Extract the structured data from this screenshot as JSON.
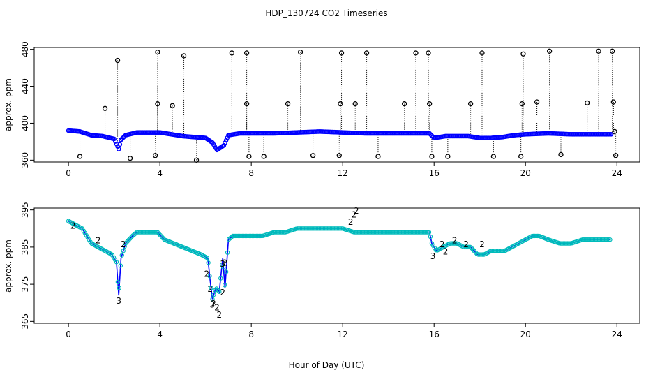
{
  "figure_title": "HDP_130724  CO2 Timeseries",
  "x_label": "Hour of Day (UTC)",
  "colors": {
    "outlier": "#000000",
    "series_main": "#0000ff",
    "series_alt": "#00cc00",
    "series_marker": "#00bbbb"
  },
  "chart_data": [
    {
      "type": "scatter",
      "title": "",
      "xlabel": "",
      "ylabel": "approx. ppm",
      "xlim": [
        -1.5,
        25
      ],
      "ylim": [
        358,
        482
      ],
      "xticks": [
        0,
        4,
        8,
        12,
        16,
        20,
        24
      ],
      "yticks": [
        360,
        400,
        440,
        480
      ],
      "grid": false,
      "series": [
        {
          "kind": "outliers",
          "x": [
            0.5,
            1.6,
            2.15,
            2.7,
            3.8,
            3.9,
            3.9,
            4.55,
            5.05,
            5.6,
            7.15,
            7.8,
            7.8,
            7.9,
            8.55,
            9.6,
            10.15,
            10.7,
            11.85,
            11.9,
            11.95,
            12.55,
            13.05,
            13.55,
            14.7,
            15.2,
            15.75,
            15.8,
            15.9,
            16.6,
            17.6,
            18.1,
            18.6,
            19.8,
            19.85,
            19.9,
            20.5,
            21.05,
            21.55,
            22.7,
            23.2,
            23.8,
            23.85,
            23.9,
            23.95
          ],
          "y": [
            364,
            416,
            468,
            362,
            365,
            421,
            477,
            419,
            473,
            360,
            476,
            476,
            421,
            364,
            364,
            421,
            477,
            365,
            365,
            421,
            476,
            421,
            476,
            364,
            421,
            476,
            476,
            421,
            364,
            364,
            421,
            476,
            364,
            364,
            421,
            475,
            423,
            478,
            366,
            422,
            478,
            478,
            423,
            391,
            365
          ]
        },
        {
          "kind": "baseline",
          "x": [
            0,
            0.5,
            1,
            1.5,
            2,
            2.2,
            2.3,
            2.5,
            3,
            3.5,
            4,
            5,
            5.5,
            6,
            6.3,
            6.5,
            6.8,
            7,
            7.5,
            8,
            9,
            10,
            11,
            12,
            13,
            14,
            15,
            15.8,
            16,
            16.5,
            17,
            17.5,
            18,
            18.5,
            19,
            19.5,
            20,
            21,
            22,
            23,
            23.8
          ],
          "y": [
            392,
            391,
            387,
            386,
            383,
            372,
            382,
            387,
            390,
            390,
            390,
            386,
            385,
            384,
            379,
            371,
            376,
            387,
            389,
            389,
            389,
            390,
            391,
            390,
            389,
            389,
            389,
            389,
            384,
            386,
            386,
            386,
            384,
            384,
            385,
            387,
            388,
            389,
            388,
            388,
            388
          ]
        }
      ]
    },
    {
      "type": "line",
      "title": "",
      "xlabel": "",
      "ylabel": "approx. ppm",
      "xlim": [
        -1.5,
        25
      ],
      "ylim": [
        364.5,
        395.5
      ],
      "xticks": [
        0,
        4,
        8,
        12,
        16,
        20,
        24
      ],
      "yticks": [
        365,
        375,
        385,
        395
      ],
      "grid": false,
      "series": [
        {
          "kind": "main",
          "x": [
            0,
            0.3,
            0.6,
            0.8,
            1,
            1.3,
            1.6,
            1.9,
            2.1,
            2.2,
            2.3,
            2.5,
            2.8,
            3,
            3.3,
            3.6,
            3.9,
            4.2,
            4.6,
            5,
            5.4,
            5.8,
            6.1,
            6.2,
            6.3,
            6.45,
            6.6,
            6.75,
            6.85,
            7.0,
            7.2,
            7.5,
            8,
            8.5,
            9,
            9.5,
            10,
            10.5,
            11,
            11.5,
            12,
            12.5,
            13,
            13.5,
            14,
            14.5,
            15,
            15.5,
            15.8,
            15.9,
            16.1,
            16.4,
            16.7,
            17,
            17.3,
            17.6,
            17.9,
            18.2,
            18.5,
            18.8,
            19.1,
            19.4,
            19.7,
            20,
            20.3,
            20.6,
            21,
            21.5,
            22,
            22.5,
            23,
            23.5,
            23.7
          ],
          "y": [
            392,
            391,
            390,
            388,
            386,
            385,
            384,
            383,
            381,
            372,
            382,
            386,
            388,
            389,
            389,
            389,
            389,
            387,
            386,
            385,
            384,
            383,
            382,
            376,
            371,
            374,
            373,
            382,
            374,
            387,
            388,
            388,
            388,
            388,
            389,
            389,
            390,
            390,
            390,
            390,
            390,
            389,
            389,
            389,
            389,
            389,
            389,
            389,
            389,
            386,
            384,
            385,
            386,
            386,
            385,
            385,
            383,
            383,
            384,
            384,
            384,
            385,
            386,
            387,
            388,
            388,
            387,
            386,
            386,
            387,
            387,
            387,
            387
          ]
        },
        {
          "kind": "alt-labeled-2",
          "x": [
            0.2,
            1.3,
            2.4,
            6.05,
            6.2,
            6.35,
            6.5,
            6.6,
            6.75,
            6.85,
            12.35,
            12.5,
            12.6,
            16.35,
            16.5,
            16.9,
            17.4,
            18.1
          ],
          "y": [
            390,
            386,
            385,
            377,
            373,
            369,
            368,
            366,
            372,
            380,
            391,
            393,
            394,
            385,
            383,
            386,
            385,
            385
          ]
        }
      ]
    }
  ]
}
